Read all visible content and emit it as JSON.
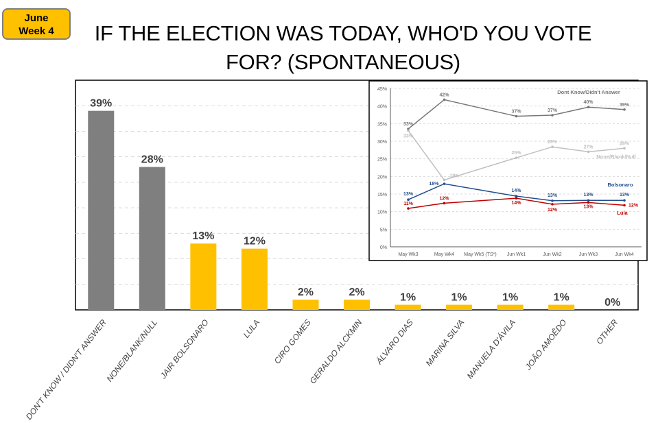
{
  "badge": {
    "line1": "June",
    "line2": "Week 4"
  },
  "chart_data": [
    {
      "type": "bar",
      "title": "IF THE ELECTION WAS TODAY, WHO'D YOU VOTE FOR? (SPONTANEOUS)",
      "categories": [
        "DON'T KNOW / DIDN'T ANSWER",
        "NONE/BLANK/NULL",
        "JAIR BOLSONARO",
        "LULA",
        "CIRO GOMES",
        "GERALDO ALCKMIN",
        "ÁLVARO DIAS",
        "MARINA SILVA",
        "MANUELA D'ÁVILA",
        "JOÃO AMOÊDO",
        "OTHER"
      ],
      "values": [
        39,
        28,
        13,
        12,
        2,
        2,
        1,
        1,
        1,
        1,
        0
      ],
      "data_labels": [
        "39%",
        "28%",
        "13%",
        "12%",
        "2%",
        "2%",
        "1%",
        "1%",
        "1%",
        "1%",
        "0%"
      ],
      "colors": [
        "#7f7f7f",
        "#7f7f7f",
        "#ffc000",
        "#ffc000",
        "#ffc000",
        "#ffc000",
        "#ffc000",
        "#ffc000",
        "#ffc000",
        "#ffc000",
        "#ffc000"
      ],
      "ylim": [
        0,
        45
      ],
      "grid": true
    },
    {
      "type": "line",
      "categories": [
        "May Wk3",
        "May Wk4",
        "May Wk5 (TS*)",
        "Jun Wk1",
        "Jun Wk2",
        "Jun Wk3",
        "Jun Wk4"
      ],
      "ylim": [
        0,
        45
      ],
      "yticks": [
        "0%",
        "5%",
        "10%",
        "15%",
        "20%",
        "25%",
        "30%",
        "35%",
        "40%",
        "45%"
      ],
      "grid": true,
      "series": [
        {
          "name": "Dont Know/Didn't Answer",
          "color": "#767676",
          "values": [
            33.5,
            41.8,
            null,
            37.1,
            37.4,
            39.7,
            39.0
          ],
          "labels": [
            "33%",
            "42%",
            "",
            "37%",
            "37%",
            "40%",
            "39%"
          ]
        },
        {
          "name": "None/Blank/Null",
          "color": "#bfbfbf",
          "values": [
            33,
            19,
            null,
            25.3,
            28.4,
            27,
            28
          ],
          "labels": [
            "33%",
            "19%",
            "",
            "25%",
            "28%",
            "27%",
            "28%"
          ]
        },
        {
          "name": "Bolsonaro",
          "color": "#1f4e8c",
          "values": [
            13.4,
            17.9,
            null,
            14.4,
            13.1,
            13.2,
            13.2
          ],
          "labels": [
            "13%",
            "18%",
            "",
            "14%",
            "13%",
            "13%",
            "13%"
          ]
        },
        {
          "name": "Lula",
          "color": "#c00000",
          "values": [
            10.9,
            12.4,
            null,
            13.8,
            12.1,
            12.6,
            11.8
          ],
          "labels": [
            "11%",
            "12%",
            "",
            "14%",
            "12%",
            "13%",
            "12%"
          ]
        }
      ]
    }
  ]
}
